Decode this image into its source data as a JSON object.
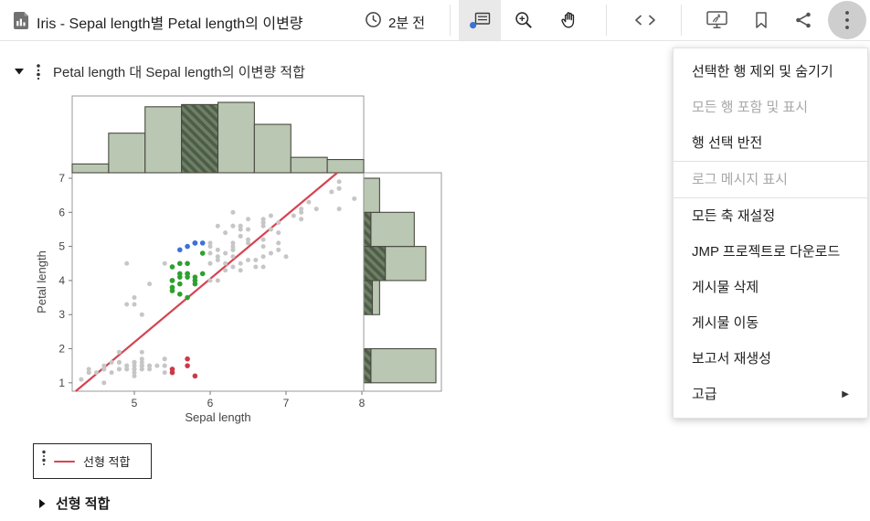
{
  "topbar": {
    "title": "Iris - Sepal length별 Petal length의 이변량",
    "timestamp": "2분 전",
    "icons": [
      "report-document-icon",
      "clock-icon",
      "data-label-tool-icon",
      "zoom-in-icon",
      "hand-tool-icon",
      "embed-code-icon",
      "interactive-report-icon",
      "bookmark-icon",
      "share-icon",
      "more-menu-icon"
    ]
  },
  "report": {
    "title": "Petal length 대 Sepal length의 이변량 적합"
  },
  "menu": {
    "items": [
      {
        "label": "선택한 행 제외 및 숨기기",
        "disabled": false
      },
      {
        "label": "모든 행 포함 및 표시",
        "disabled": true
      },
      {
        "label": "행 선택 반전",
        "disabled": false,
        "divider_after": true
      },
      {
        "label": "로그 메시지 표시",
        "disabled": true,
        "divider_after": true
      },
      {
        "label": "모든 축 재설정",
        "disabled": false
      },
      {
        "label": "JMP 프로젝트로 다운로드",
        "disabled": false
      },
      {
        "label": "게시물 삭제",
        "disabled": false
      },
      {
        "label": "게시물 이동",
        "disabled": false
      },
      {
        "label": "보고서 재생성",
        "disabled": false
      },
      {
        "label": "고급",
        "disabled": false,
        "submenu": true
      }
    ]
  },
  "legend": {
    "label": "선형 적합"
  },
  "footer": {
    "label": "선형 적합"
  },
  "chart_data": {
    "type": "scatter",
    "title": "Petal length 대 Sepal length의 이변량 적합",
    "xlabel": "Sepal length",
    "ylabel": "Petal length",
    "xlim": [
      4.13,
      8.05
    ],
    "ylim": [
      0.75,
      7.16
    ],
    "xticks": [
      5,
      6,
      7,
      8
    ],
    "yticks": [
      1,
      2,
      3,
      4,
      5,
      6,
      7
    ],
    "grid": false,
    "frame_color": "#9a9a9a",
    "tick_color": "#454545",
    "fit_line": {
      "label": "선형 적합",
      "slope": 1.858,
      "intercept": -7.1,
      "color": "#d64352"
    },
    "point_colors": {
      "gray": "#c6c6c6",
      "red": "#cc3946",
      "green": "#2da12e",
      "blue": "#3b72d8"
    },
    "points": {
      "gray": [
        [
          5.1,
          1.4
        ],
        [
          4.9,
          1.4
        ],
        [
          4.7,
          1.3
        ],
        [
          4.6,
          1.5
        ],
        [
          5.0,
          1.4
        ],
        [
          5.4,
          1.7
        ],
        [
          4.6,
          1.4
        ],
        [
          5.0,
          1.5
        ],
        [
          4.4,
          1.4
        ],
        [
          4.9,
          1.5
        ],
        [
          5.4,
          1.5
        ],
        [
          4.8,
          1.6
        ],
        [
          4.8,
          1.4
        ],
        [
          4.3,
          1.1
        ],
        [
          5.4,
          1.3
        ],
        [
          5.1,
          1.4
        ],
        [
          5.1,
          1.5
        ],
        [
          5.4,
          1.7
        ],
        [
          5.1,
          1.5
        ],
        [
          4.6,
          1.0
        ],
        [
          5.1,
          1.7
        ],
        [
          4.8,
          1.9
        ],
        [
          5.0,
          1.6
        ],
        [
          5.0,
          1.6
        ],
        [
          5.2,
          1.5
        ],
        [
          5.2,
          1.4
        ],
        [
          4.7,
          1.6
        ],
        [
          4.8,
          1.6
        ],
        [
          5.4,
          1.5
        ],
        [
          5.2,
          1.5
        ],
        [
          4.9,
          1.5
        ],
        [
          5.0,
          1.2
        ],
        [
          4.9,
          1.4
        ],
        [
          4.4,
          1.3
        ],
        [
          5.1,
          1.5
        ],
        [
          5.0,
          1.3
        ],
        [
          4.5,
          1.3
        ],
        [
          4.4,
          1.3
        ],
        [
          5.0,
          1.6
        ],
        [
          5.1,
          1.9
        ],
        [
          4.8,
          1.4
        ],
        [
          5.1,
          1.6
        ],
        [
          4.6,
          1.4
        ],
        [
          5.3,
          1.5
        ],
        [
          5.0,
          1.4
        ],
        [
          7.0,
          4.7
        ],
        [
          6.4,
          4.5
        ],
        [
          6.9,
          4.9
        ],
        [
          6.5,
          4.6
        ],
        [
          6.3,
          4.7
        ],
        [
          4.9,
          3.3
        ],
        [
          6.6,
          4.6
        ],
        [
          5.2,
          3.9
        ],
        [
          5.0,
          3.5
        ],
        [
          6.0,
          4.0
        ],
        [
          6.1,
          4.7
        ],
        [
          6.7,
          4.4
        ],
        [
          6.2,
          4.5
        ],
        [
          6.1,
          4.0
        ],
        [
          6.3,
          4.9
        ],
        [
          6.1,
          4.7
        ],
        [
          6.4,
          4.3
        ],
        [
          6.6,
          4.4
        ],
        [
          6.8,
          4.8
        ],
        [
          6.7,
          5.0
        ],
        [
          6.0,
          4.5
        ],
        [
          6.0,
          5.1
        ],
        [
          5.4,
          4.5
        ],
        [
          6.0,
          4.5
        ],
        [
          6.7,
          4.7
        ],
        [
          6.3,
          4.4
        ],
        [
          6.1,
          4.6
        ],
        [
          5.0,
          3.3
        ],
        [
          6.2,
          4.3
        ],
        [
          5.1,
          3.0
        ],
        [
          6.3,
          6.0
        ],
        [
          7.1,
          5.9
        ],
        [
          6.3,
          5.6
        ],
        [
          6.5,
          5.8
        ],
        [
          7.6,
          6.6
        ],
        [
          4.9,
          4.5
        ],
        [
          7.3,
          6.3
        ],
        [
          6.7,
          5.8
        ],
        [
          7.2,
          6.1
        ],
        [
          6.5,
          5.1
        ],
        [
          6.4,
          5.3
        ],
        [
          6.8,
          5.5
        ],
        [
          6.4,
          5.3
        ],
        [
          6.5,
          5.5
        ],
        [
          7.7,
          6.7
        ],
        [
          7.7,
          6.9
        ],
        [
          6.0,
          5.0
        ],
        [
          6.9,
          5.7
        ],
        [
          7.7,
          6.7
        ],
        [
          6.3,
          4.9
        ],
        [
          6.7,
          5.7
        ],
        [
          7.2,
          6.0
        ],
        [
          6.2,
          4.8
        ],
        [
          6.1,
          4.9
        ],
        [
          6.4,
          5.6
        ],
        [
          7.2,
          5.8
        ],
        [
          7.4,
          6.1
        ],
        [
          7.9,
          6.4
        ],
        [
          6.4,
          5.6
        ],
        [
          6.3,
          5.1
        ],
        [
          6.1,
          5.6
        ],
        [
          7.7,
          6.1
        ],
        [
          6.3,
          5.6
        ],
        [
          6.4,
          5.5
        ],
        [
          6.0,
          4.8
        ],
        [
          6.9,
          5.4
        ],
        [
          6.7,
          5.6
        ],
        [
          6.9,
          5.1
        ],
        [
          6.8,
          5.9
        ],
        [
          6.7,
          5.7
        ],
        [
          6.7,
          5.2
        ],
        [
          6.3,
          5.0
        ],
        [
          6.5,
          5.2
        ],
        [
          6.2,
          5.4
        ]
      ],
      "red": [
        [
          5.8,
          1.2
        ],
        [
          5.7,
          1.5
        ],
        [
          5.7,
          1.7
        ],
        [
          5.5,
          1.4
        ],
        [
          5.5,
          1.3
        ]
      ],
      "green": [
        [
          5.5,
          4.0
        ],
        [
          5.7,
          4.5
        ],
        [
          5.9,
          4.2
        ],
        [
          5.6,
          3.6
        ],
        [
          5.6,
          4.5
        ],
        [
          5.8,
          4.1
        ],
        [
          5.6,
          3.9
        ],
        [
          5.9,
          4.8
        ],
        [
          5.7,
          3.5
        ],
        [
          5.5,
          3.8
        ],
        [
          5.5,
          3.7
        ],
        [
          5.8,
          3.9
        ],
        [
          5.6,
          4.1
        ],
        [
          5.5,
          4.0
        ],
        [
          5.5,
          4.4
        ],
        [
          5.8,
          4.0
        ],
        [
          5.6,
          4.2
        ],
        [
          5.7,
          4.2
        ],
        [
          5.7,
          4.2
        ],
        [
          5.7,
          4.1
        ]
      ],
      "blue": [
        [
          5.8,
          5.1
        ],
        [
          5.7,
          5.0
        ],
        [
          5.8,
          5.1
        ],
        [
          5.6,
          4.9
        ],
        [
          5.8,
          5.1
        ],
        [
          5.9,
          5.1
        ]
      ]
    },
    "top_histogram": {
      "variable": "Sepal length",
      "bin_start": 4.0,
      "bin_width": 0.5,
      "counts": [
        4,
        18,
        30,
        31,
        32,
        22,
        7,
        6
      ],
      "selected_bin_index": 3
    },
    "right_histogram": {
      "variable": "Petal length",
      "bin_starts": [
        1,
        2,
        3,
        4,
        5,
        6
      ],
      "bin_width": 1,
      "counts": [
        50,
        0,
        11,
        43,
        35,
        11
      ],
      "selected_counts": [
        5,
        0,
        6,
        15,
        5,
        0
      ]
    },
    "histogram_colors": {
      "fill": "#bac8b3",
      "stroke": "#49493f",
      "hatch_dark": "#4e5c49",
      "hatch_light": "#6d8165"
    }
  }
}
